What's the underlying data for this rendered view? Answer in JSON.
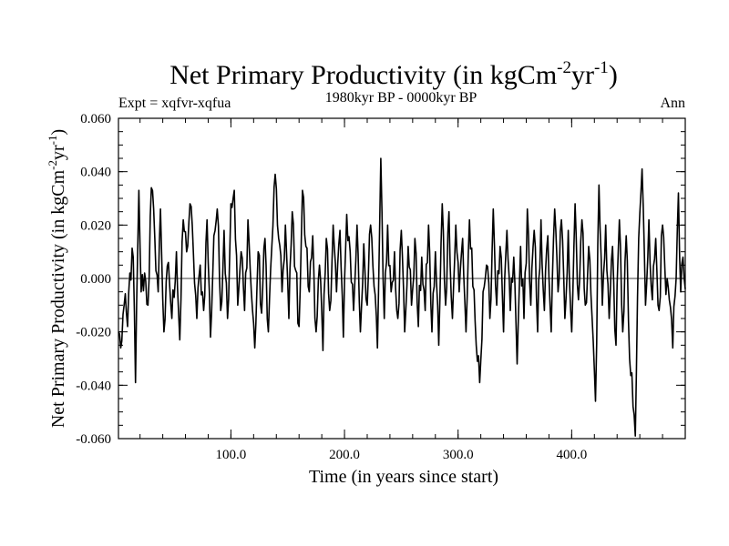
{
  "chart_data": {
    "type": "line",
    "title": "Net Primary Productivity (in kgCm",
    "title_sup1": "-2",
    "title_mid": "yr",
    "title_sup2": "-1",
    "title_end": ")",
    "subtitle_left": "Expt = xqfvr-xqfua",
    "subtitle_center": "1980kyr BP - 0000kyr BP",
    "subtitle_right": "Ann",
    "xlabel": "Time (in years since start)",
    "ylabel": "Net Primary Productivity (in kgCm",
    "ylabel_sup1": "-2",
    "ylabel_mid": "yr",
    "ylabel_sup2": "-1",
    "ylabel_end": ")",
    "xlim": [
      1,
      500
    ],
    "ylim": [
      -0.06,
      0.06
    ],
    "xticks": [
      100,
      200,
      300,
      400
    ],
    "xtick_labels": [
      "100.0",
      "200.0",
      "300.0",
      "400.0"
    ],
    "yticks": [
      -0.06,
      -0.04,
      -0.02,
      0.0,
      0.02,
      0.04,
      0.06
    ],
    "ytick_labels": [
      "-0.060",
      "-0.040",
      "-0.020",
      "0.000",
      "0.020",
      "0.040",
      "0.060"
    ],
    "zero_line": true,
    "color": "#000000",
    "series_keypoints": [
      [
        1,
        -0.02
      ],
      [
        3,
        -0.026
      ],
      [
        6,
        -0.01
      ],
      [
        9,
        -0.018
      ],
      [
        11,
        0.002
      ],
      [
        14,
        0.008
      ],
      [
        16,
        -0.039
      ],
      [
        19,
        0.033
      ],
      [
        21,
        -0.005
      ],
      [
        24,
        0.002
      ],
      [
        27,
        -0.01
      ],
      [
        30,
        0.034
      ],
      [
        33,
        0.015
      ],
      [
        36,
        -0.005
      ],
      [
        38,
        0.026
      ],
      [
        41,
        -0.02
      ],
      [
        45,
        0.006
      ],
      [
        48,
        -0.015
      ],
      [
        52,
        0.01
      ],
      [
        55,
        -0.023
      ],
      [
        58,
        0.022
      ],
      [
        61,
        0.01
      ],
      [
        64,
        0.028
      ],
      [
        67,
        0.009
      ],
      [
        70,
        -0.015
      ],
      [
        73,
        0.005
      ],
      [
        76,
        -0.012
      ],
      [
        79,
        0.022
      ],
      [
        82,
        -0.022
      ],
      [
        85,
        0.016
      ],
      [
        88,
        0.026
      ],
      [
        91,
        -0.012
      ],
      [
        94,
        0.018
      ],
      [
        97,
        -0.015
      ],
      [
        100,
        0.028
      ],
      [
        103,
        0.033
      ],
      [
        106,
        -0.01
      ],
      [
        109,
        0.01
      ],
      [
        112,
        -0.012
      ],
      [
        115,
        0.022
      ],
      [
        118,
        -0.005
      ],
      [
        121,
        -0.026
      ],
      [
        124,
        0.01
      ],
      [
        127,
        -0.013
      ],
      [
        130,
        0.015
      ],
      [
        133,
        -0.02
      ],
      [
        136,
        0.012
      ],
      [
        139,
        0.039
      ],
      [
        142,
        0.015
      ],
      [
        145,
        -0.005
      ],
      [
        148,
        0.02
      ],
      [
        151,
        -0.015
      ],
      [
        154,
        0.025
      ],
      [
        157,
        0.003
      ],
      [
        160,
        -0.018
      ],
      [
        163,
        0.033
      ],
      [
        166,
        0.012
      ],
      [
        169,
        -0.005
      ],
      [
        172,
        0.016
      ],
      [
        175,
        -0.02
      ],
      [
        178,
        0.005
      ],
      [
        181,
        -0.027
      ],
      [
        184,
        0.015
      ],
      [
        187,
        -0.012
      ],
      [
        190,
        0.02
      ],
      [
        193,
        -0.005
      ],
      [
        196,
        0.018
      ],
      [
        199,
        -0.022
      ],
      [
        202,
        0.024
      ],
      [
        205,
        0.01
      ],
      [
        208,
        -0.012
      ],
      [
        211,
        0.02
      ],
      [
        214,
        -0.02
      ],
      [
        217,
        0.013
      ],
      [
        220,
        -0.01
      ],
      [
        223,
        0.02
      ],
      [
        226,
        -0.003
      ],
      [
        229,
        -0.026
      ],
      [
        232,
        0.045
      ],
      [
        235,
        -0.015
      ],
      [
        238,
        0.02
      ],
      [
        241,
        -0.005
      ],
      [
        244,
        0.01
      ],
      [
        247,
        -0.015
      ],
      [
        250,
        0.018
      ],
      [
        253,
        -0.02
      ],
      [
        256,
        0.012
      ],
      [
        259,
        -0.01
      ],
      [
        262,
        0.015
      ],
      [
        265,
        -0.018
      ],
      [
        268,
        0.008
      ],
      [
        271,
        -0.012
      ],
      [
        274,
        0.02
      ],
      [
        277,
        -0.02
      ],
      [
        280,
        0.01
      ],
      [
        283,
        -0.025
      ],
      [
        286,
        0.028
      ],
      [
        289,
        -0.01
      ],
      [
        292,
        0.025
      ],
      [
        295,
        -0.015
      ],
      [
        298,
        0.02
      ],
      [
        301,
        -0.005
      ],
      [
        304,
        0.015
      ],
      [
        307,
        -0.02
      ],
      [
        310,
        0.022
      ],
      [
        313,
        -0.003
      ],
      [
        316,
        -0.025
      ],
      [
        319,
        -0.039
      ],
      [
        322,
        -0.005
      ],
      [
        325,
        0.005
      ],
      [
        328,
        -0.015
      ],
      [
        331,
        0.026
      ],
      [
        334,
        -0.01
      ],
      [
        337,
        0.012
      ],
      [
        340,
        -0.02
      ],
      [
        343,
        0.018
      ],
      [
        346,
        -0.012
      ],
      [
        349,
        0.008
      ],
      [
        352,
        -0.032
      ],
      [
        355,
        0.012
      ],
      [
        358,
        -0.015
      ],
      [
        361,
        0.026
      ],
      [
        364,
        -0.01
      ],
      [
        367,
        0.018
      ],
      [
        370,
        -0.02
      ],
      [
        373,
        0.022
      ],
      [
        376,
        -0.012
      ],
      [
        379,
        0.016
      ],
      [
        382,
        -0.02
      ],
      [
        385,
        0.026
      ],
      [
        388,
        -0.005
      ],
      [
        391,
        0.022
      ],
      [
        394,
        -0.015
      ],
      [
        397,
        0.018
      ],
      [
        400,
        -0.02
      ],
      [
        403,
        0.028
      ],
      [
        406,
        -0.008
      ],
      [
        409,
        0.022
      ],
      [
        412,
        -0.01
      ],
      [
        415,
        0.012
      ],
      [
        418,
        -0.015
      ],
      [
        421,
        -0.046
      ],
      [
        424,
        0.035
      ],
      [
        427,
        -0.01
      ],
      [
        430,
        0.02
      ],
      [
        433,
        -0.015
      ],
      [
        436,
        0.012
      ],
      [
        439,
        -0.025
      ],
      [
        442,
        0.022
      ],
      [
        445,
        -0.02
      ],
      [
        448,
        0.016
      ],
      [
        451,
        -0.03
      ],
      [
        454,
        -0.048
      ],
      [
        456,
        -0.059
      ],
      [
        459,
        0.015
      ],
      [
        462,
        0.041
      ],
      [
        465,
        -0.01
      ],
      [
        468,
        0.022
      ],
      [
        471,
        -0.008
      ],
      [
        474,
        0.015
      ],
      [
        477,
        -0.012
      ],
      [
        480,
        0.02
      ],
      [
        483,
        -0.006
      ],
      [
        486,
        -0.008
      ],
      [
        489,
        -0.026
      ],
      [
        492,
        0.0
      ],
      [
        494,
        0.032
      ],
      [
        496,
        -0.005
      ],
      [
        498,
        0.008
      ],
      [
        500,
        -0.004
      ]
    ]
  }
}
